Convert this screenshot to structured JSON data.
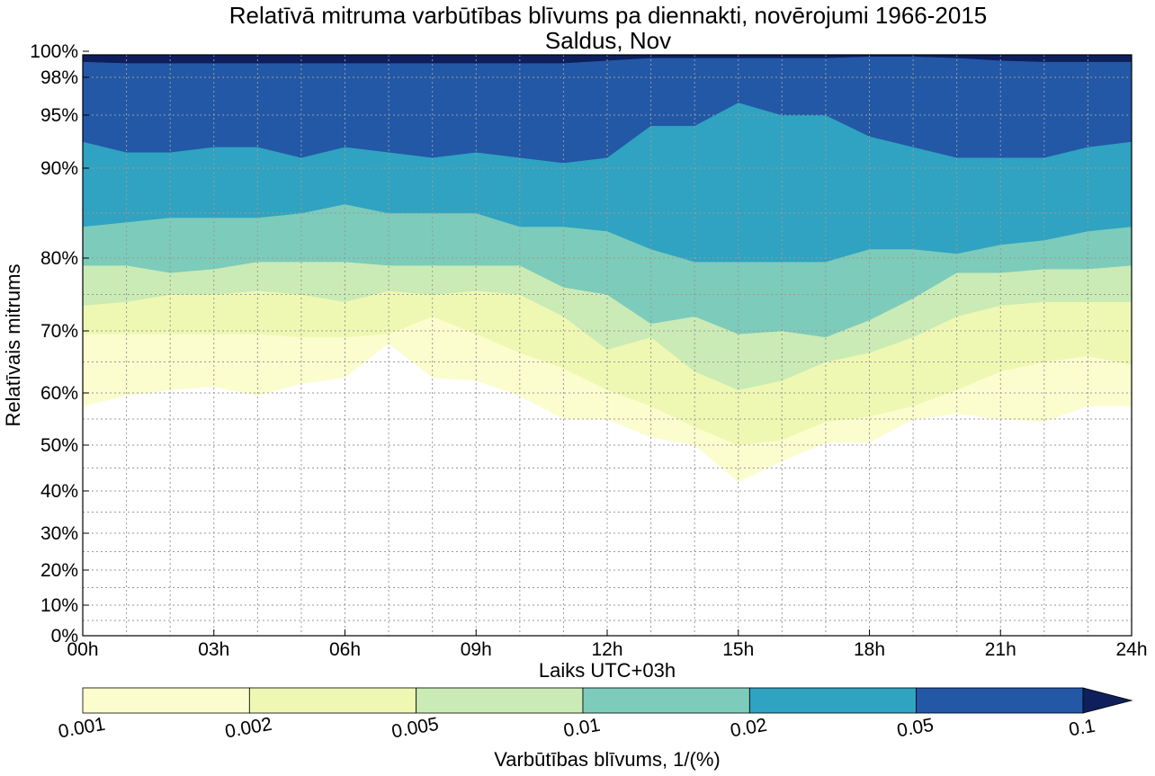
{
  "chart_data": {
    "type": "area",
    "title": "Relatīvā mitruma varbūtības blīvums pa diennakti, novērojumi 1966-2015",
    "subtitle": "Saldus, Nov",
    "xlabel": "Laiks UTC+03h",
    "ylabel": "Relatīvais mitrums",
    "x_ticks": [
      "00h",
      "03h",
      "06h",
      "09h",
      "12h",
      "15h",
      "18h",
      "21h",
      "24h"
    ],
    "xlim": [
      0,
      24
    ],
    "y_scale": "nonlinear (expanded near 100%)",
    "y_ticks": [
      "0%",
      "10%",
      "20%",
      "30%",
      "40%",
      "50%",
      "60%",
      "70%",
      "80%",
      "90%",
      "95%",
      "98%",
      "100%"
    ],
    "ylim": [
      0,
      100
    ],
    "grid": true,
    "colorbar": {
      "label": "Varbūtības blīvums, 1/(%)",
      "levels": [
        "0.001",
        "0.002",
        "0.005",
        "0.01",
        "0.02",
        "0.05",
        "0.1"
      ],
      "colors": [
        "#fbfdce",
        "#eef8b3",
        "#caebb5",
        "#7dcbbb",
        "#2fa3c1",
        "#2258a6",
        "#0f1f5c"
      ],
      "extend": "max"
    },
    "x": [
      0,
      1,
      2,
      3,
      4,
      5,
      6,
      7,
      8,
      9,
      10,
      11,
      12,
      13,
      14,
      15,
      16,
      17,
      18,
      19,
      20,
      21,
      22,
      23,
      24
    ],
    "contours": [
      {
        "level": "0.001",
        "y": [
          57.5,
          59.5,
          60.5,
          61,
          59.5,
          61.5,
          62.5,
          68,
          62.5,
          62,
          59.5,
          55,
          55,
          51.5,
          50,
          42,
          46.5,
          50.5,
          50.5,
          55,
          56,
          55,
          54.5,
          57.5,
          57.5
        ]
      },
      {
        "level": "0.002",
        "y": [
          69.5,
          69.5,
          69.5,
          69.5,
          69.5,
          69,
          69,
          69.5,
          72,
          69.5,
          66.5,
          64,
          60.5,
          57.5,
          53.5,
          50,
          51,
          54.5,
          55.5,
          57.5,
          60.5,
          63.5,
          65,
          66,
          64.5
        ]
      },
      {
        "level": "0.005",
        "y": [
          73.5,
          74,
          75,
          75,
          75.5,
          75,
          74,
          75.5,
          75,
          75.5,
          75,
          72,
          67,
          69,
          63.5,
          60.5,
          62,
          65,
          66.5,
          69,
          72,
          73.5,
          74,
          74,
          74
        ]
      },
      {
        "level": "0.01",
        "y": [
          79,
          79,
          78,
          78.5,
          79.5,
          79.5,
          79.5,
          79,
          79,
          79,
          79,
          76,
          75,
          71,
          72,
          69.5,
          70,
          69,
          71.5,
          74.5,
          78,
          78,
          78.5,
          78.5,
          79
        ]
      },
      {
        "level": "0.02",
        "y": [
          83.5,
          84,
          84.5,
          84.5,
          84.5,
          85,
          86,
          85,
          85,
          85,
          83.5,
          83.5,
          83,
          81,
          79.5,
          79.5,
          79.5,
          79.5,
          81,
          81,
          80.5,
          81.5,
          82,
          83,
          83.5
        ]
      },
      {
        "level": "0.05",
        "y": [
          92.5,
          91.5,
          91.5,
          92,
          92,
          91,
          92,
          91.5,
          91,
          91.5,
          91,
          90.5,
          91,
          94,
          94,
          96,
          95,
          95,
          93,
          92,
          91,
          91,
          91,
          92,
          92.5
        ]
      },
      {
        "level": "0.1",
        "y": [
          99.2,
          99.1,
          99.1,
          99.1,
          99.1,
          99.1,
          99.1,
          99.1,
          99.1,
          99.1,
          99.1,
          99.1,
          99.3,
          99.5,
          99.5,
          99.5,
          99.5,
          99.5,
          99.6,
          99.6,
          99.5,
          99.3,
          99.2,
          99.2,
          99.2
        ]
      }
    ]
  }
}
